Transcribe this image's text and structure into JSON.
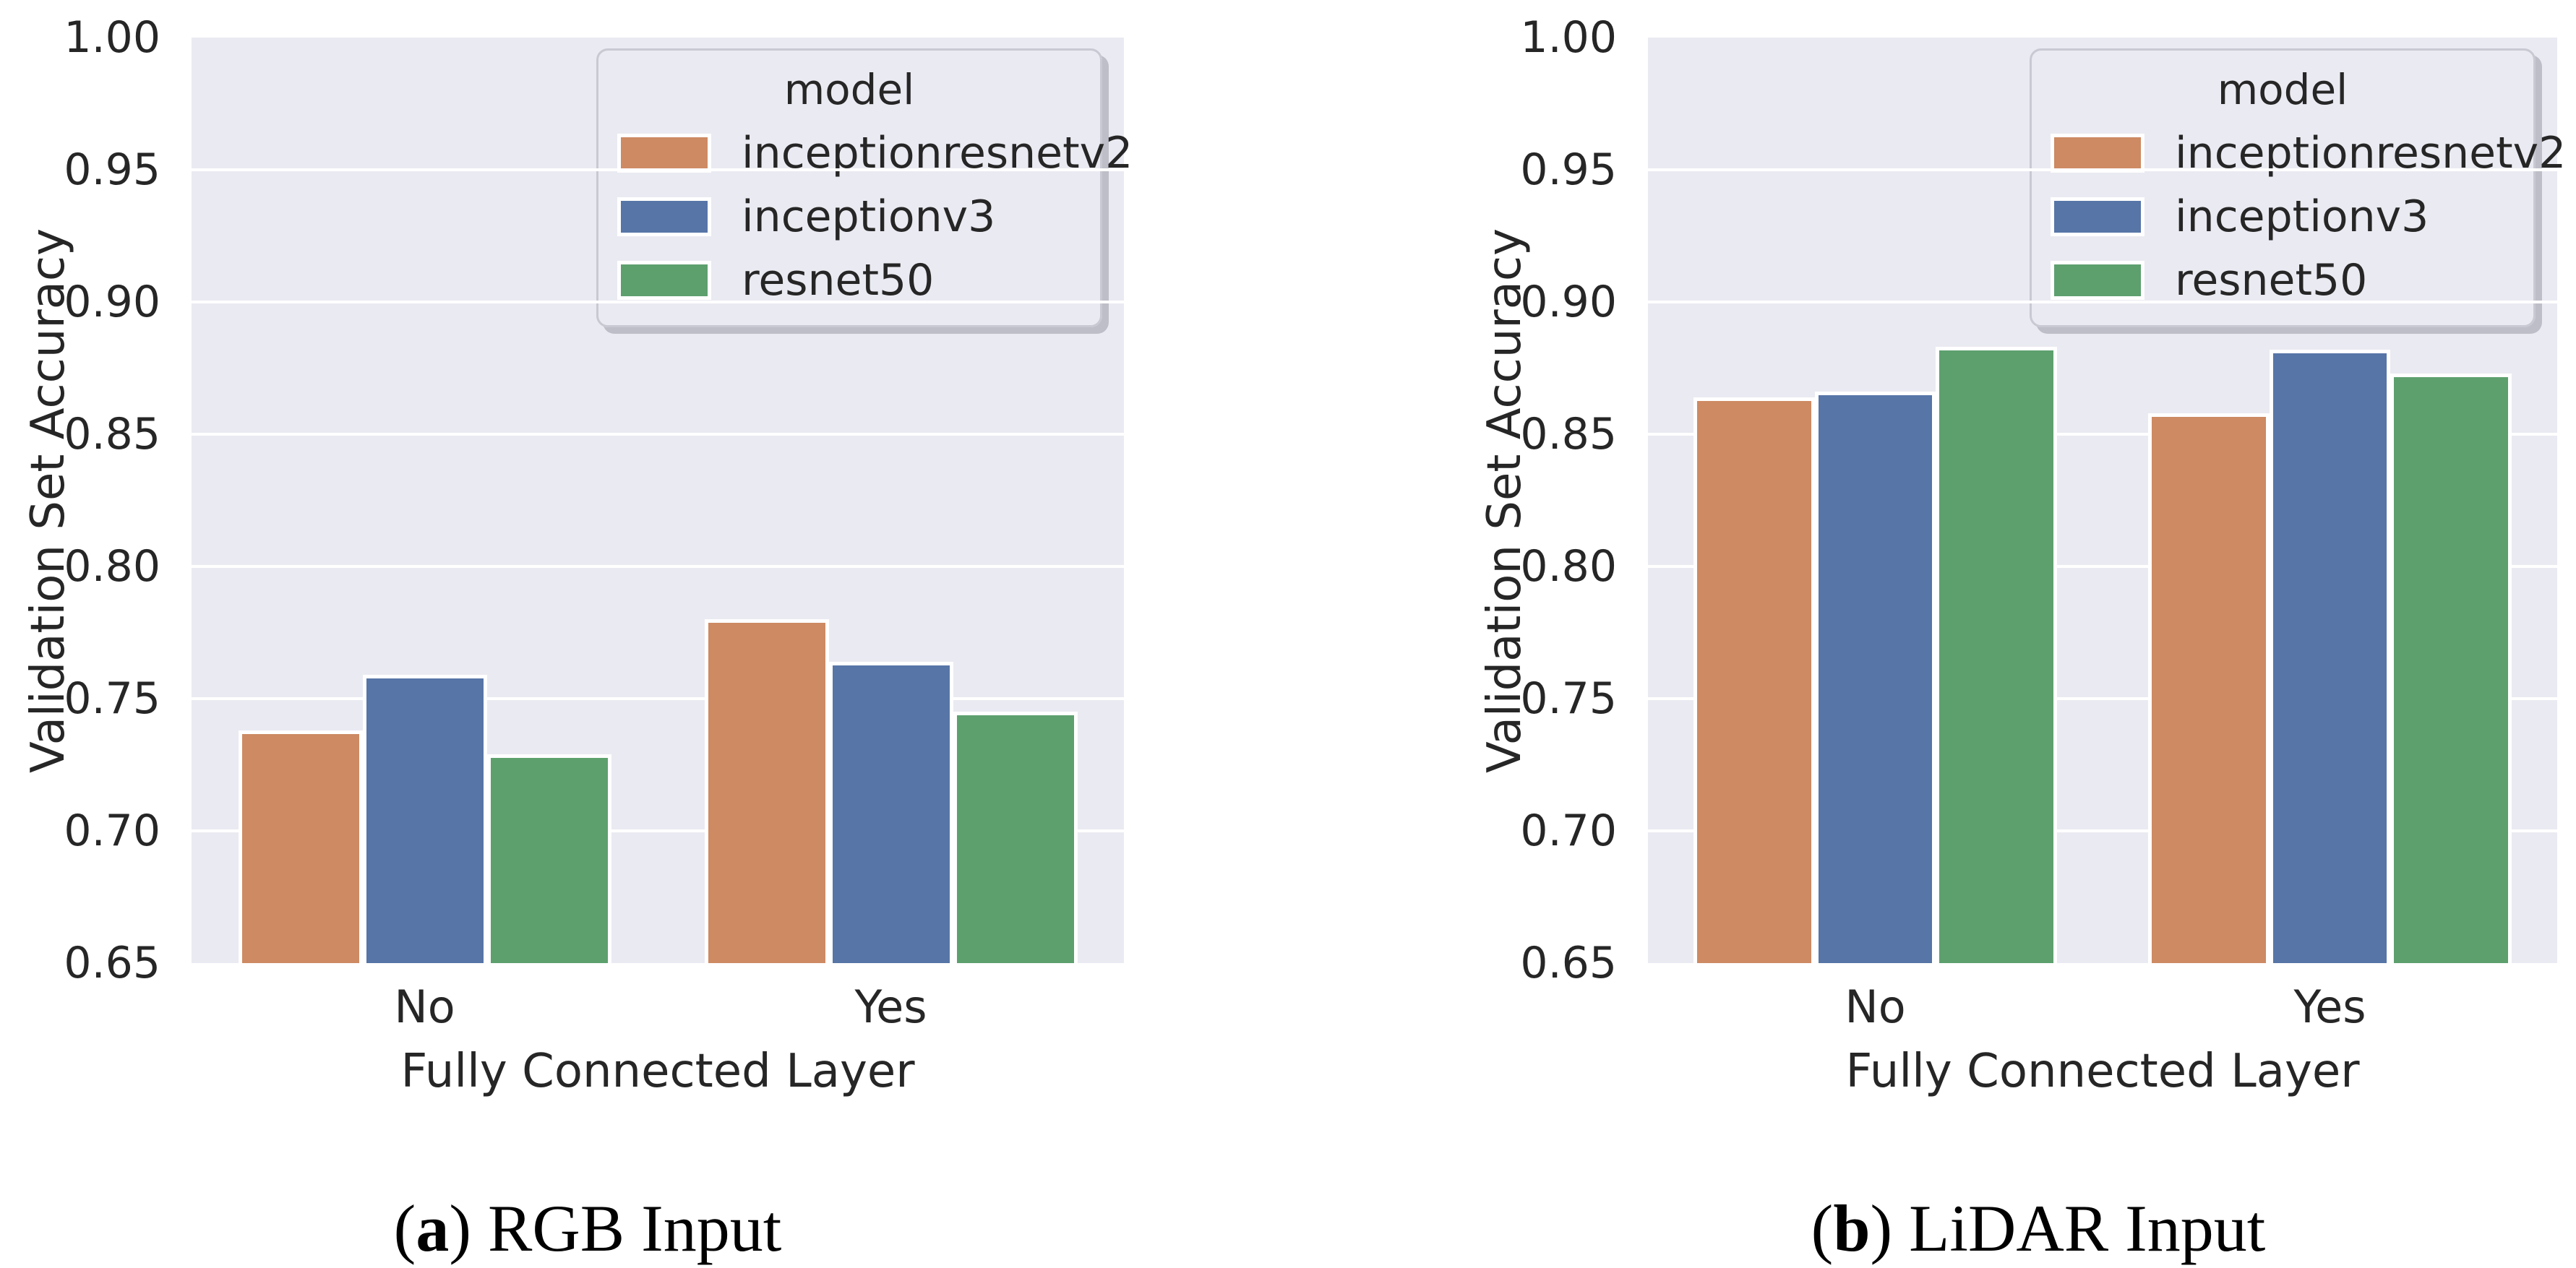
{
  "figure": {
    "background": "#ffffff",
    "text_color": "#262626",
    "plot_background": "#EAEAF2",
    "grid_color": "#ffffff"
  },
  "chart_data": [
    {
      "type": "bar",
      "panel": "a",
      "caption": {
        "open": "(",
        "letter": "a",
        "close": ")",
        "text": " RGB Input"
      },
      "xlabel": "Fully Connected Layer",
      "ylabel": "Validation Set Accuracy",
      "categories": [
        "No",
        "Yes"
      ],
      "ylim": [
        0.65,
        1.0
      ],
      "yticklabels": [
        "1.00",
        "0.95",
        "0.90",
        "0.85",
        "0.80",
        "0.75",
        "0.70",
        "0.65"
      ],
      "grid": true,
      "legend": {
        "title": "model",
        "position": "upper right"
      },
      "series": [
        {
          "name": "inceptionresnetv2",
          "color": "#CD8A63",
          "values": [
            0.738,
            0.78
          ]
        },
        {
          "name": "inceptionv3",
          "color": "#5775A7",
          "values": [
            0.759,
            0.764
          ]
        },
        {
          "name": "resnet50",
          "color": "#5DA06E",
          "values": [
            0.729,
            0.745
          ]
        }
      ]
    },
    {
      "type": "bar",
      "panel": "b",
      "caption": {
        "open": "(",
        "letter": "b",
        "close": ")",
        "text": " LiDAR Input"
      },
      "xlabel": "Fully Connected Layer",
      "ylabel": "Validation Set Accuracy",
      "categories": [
        "No",
        "Yes"
      ],
      "ylim": [
        0.65,
        1.0
      ],
      "yticklabels": [
        "1.00",
        "0.95",
        "0.90",
        "0.85",
        "0.80",
        "0.75",
        "0.70",
        "0.65"
      ],
      "grid": true,
      "legend": {
        "title": "model",
        "position": "upper right"
      },
      "series": [
        {
          "name": "inceptionresnetv2",
          "color": "#CD8A63",
          "values": [
            0.864,
            0.858
          ]
        },
        {
          "name": "inceptionv3",
          "color": "#5775A7",
          "values": [
            0.866,
            0.882
          ]
        },
        {
          "name": "resnet50",
          "color": "#5DA06E",
          "values": [
            0.883,
            0.873
          ]
        }
      ]
    }
  ]
}
